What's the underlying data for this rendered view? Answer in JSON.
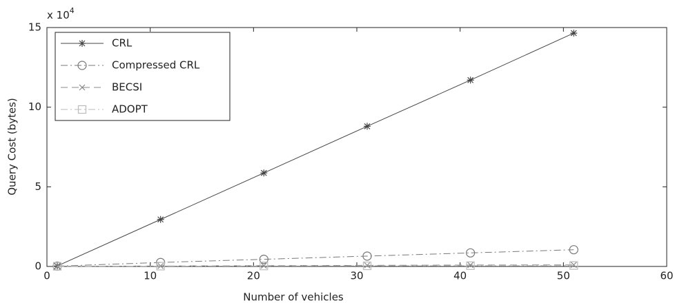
{
  "chart_data": {
    "type": "line",
    "xlabel": "Number of vehicles",
    "ylabel": "Query Cost (bytes)",
    "y_scale_label": {
      "base": "x 10",
      "exponent": "4"
    },
    "x": [
      1,
      11,
      21,
      31,
      41,
      51
    ],
    "xlim": [
      0,
      60
    ],
    "xticks": [
      0,
      10,
      20,
      30,
      40,
      50,
      60
    ],
    "ylim": [
      0,
      15
    ],
    "yticks": [
      0,
      5,
      10,
      15
    ],
    "legend": "upper left",
    "series": [
      {
        "name": "CRL",
        "color": "#444444",
        "dash": "solid",
        "marker": "star",
        "values": [
          0.03,
          2.95,
          5.87,
          8.8,
          11.7,
          14.65
        ]
      },
      {
        "name": "Compressed CRL",
        "color": "#777777",
        "dash": "dashdot",
        "marker": "circle",
        "values": [
          0.02,
          0.25,
          0.45,
          0.65,
          0.85,
          1.05
        ]
      },
      {
        "name": "BECSI",
        "color": "#888888",
        "dash": "dashed",
        "marker": "x",
        "values": [
          0.01,
          0.03,
          0.05,
          0.07,
          0.09,
          0.1
        ]
      },
      {
        "name": "ADOPT",
        "color": "#bbbbbb",
        "dash": "dashdot",
        "marker": "square",
        "values": [
          0.01,
          0.02,
          0.03,
          0.04,
          0.05,
          0.06
        ]
      }
    ]
  }
}
